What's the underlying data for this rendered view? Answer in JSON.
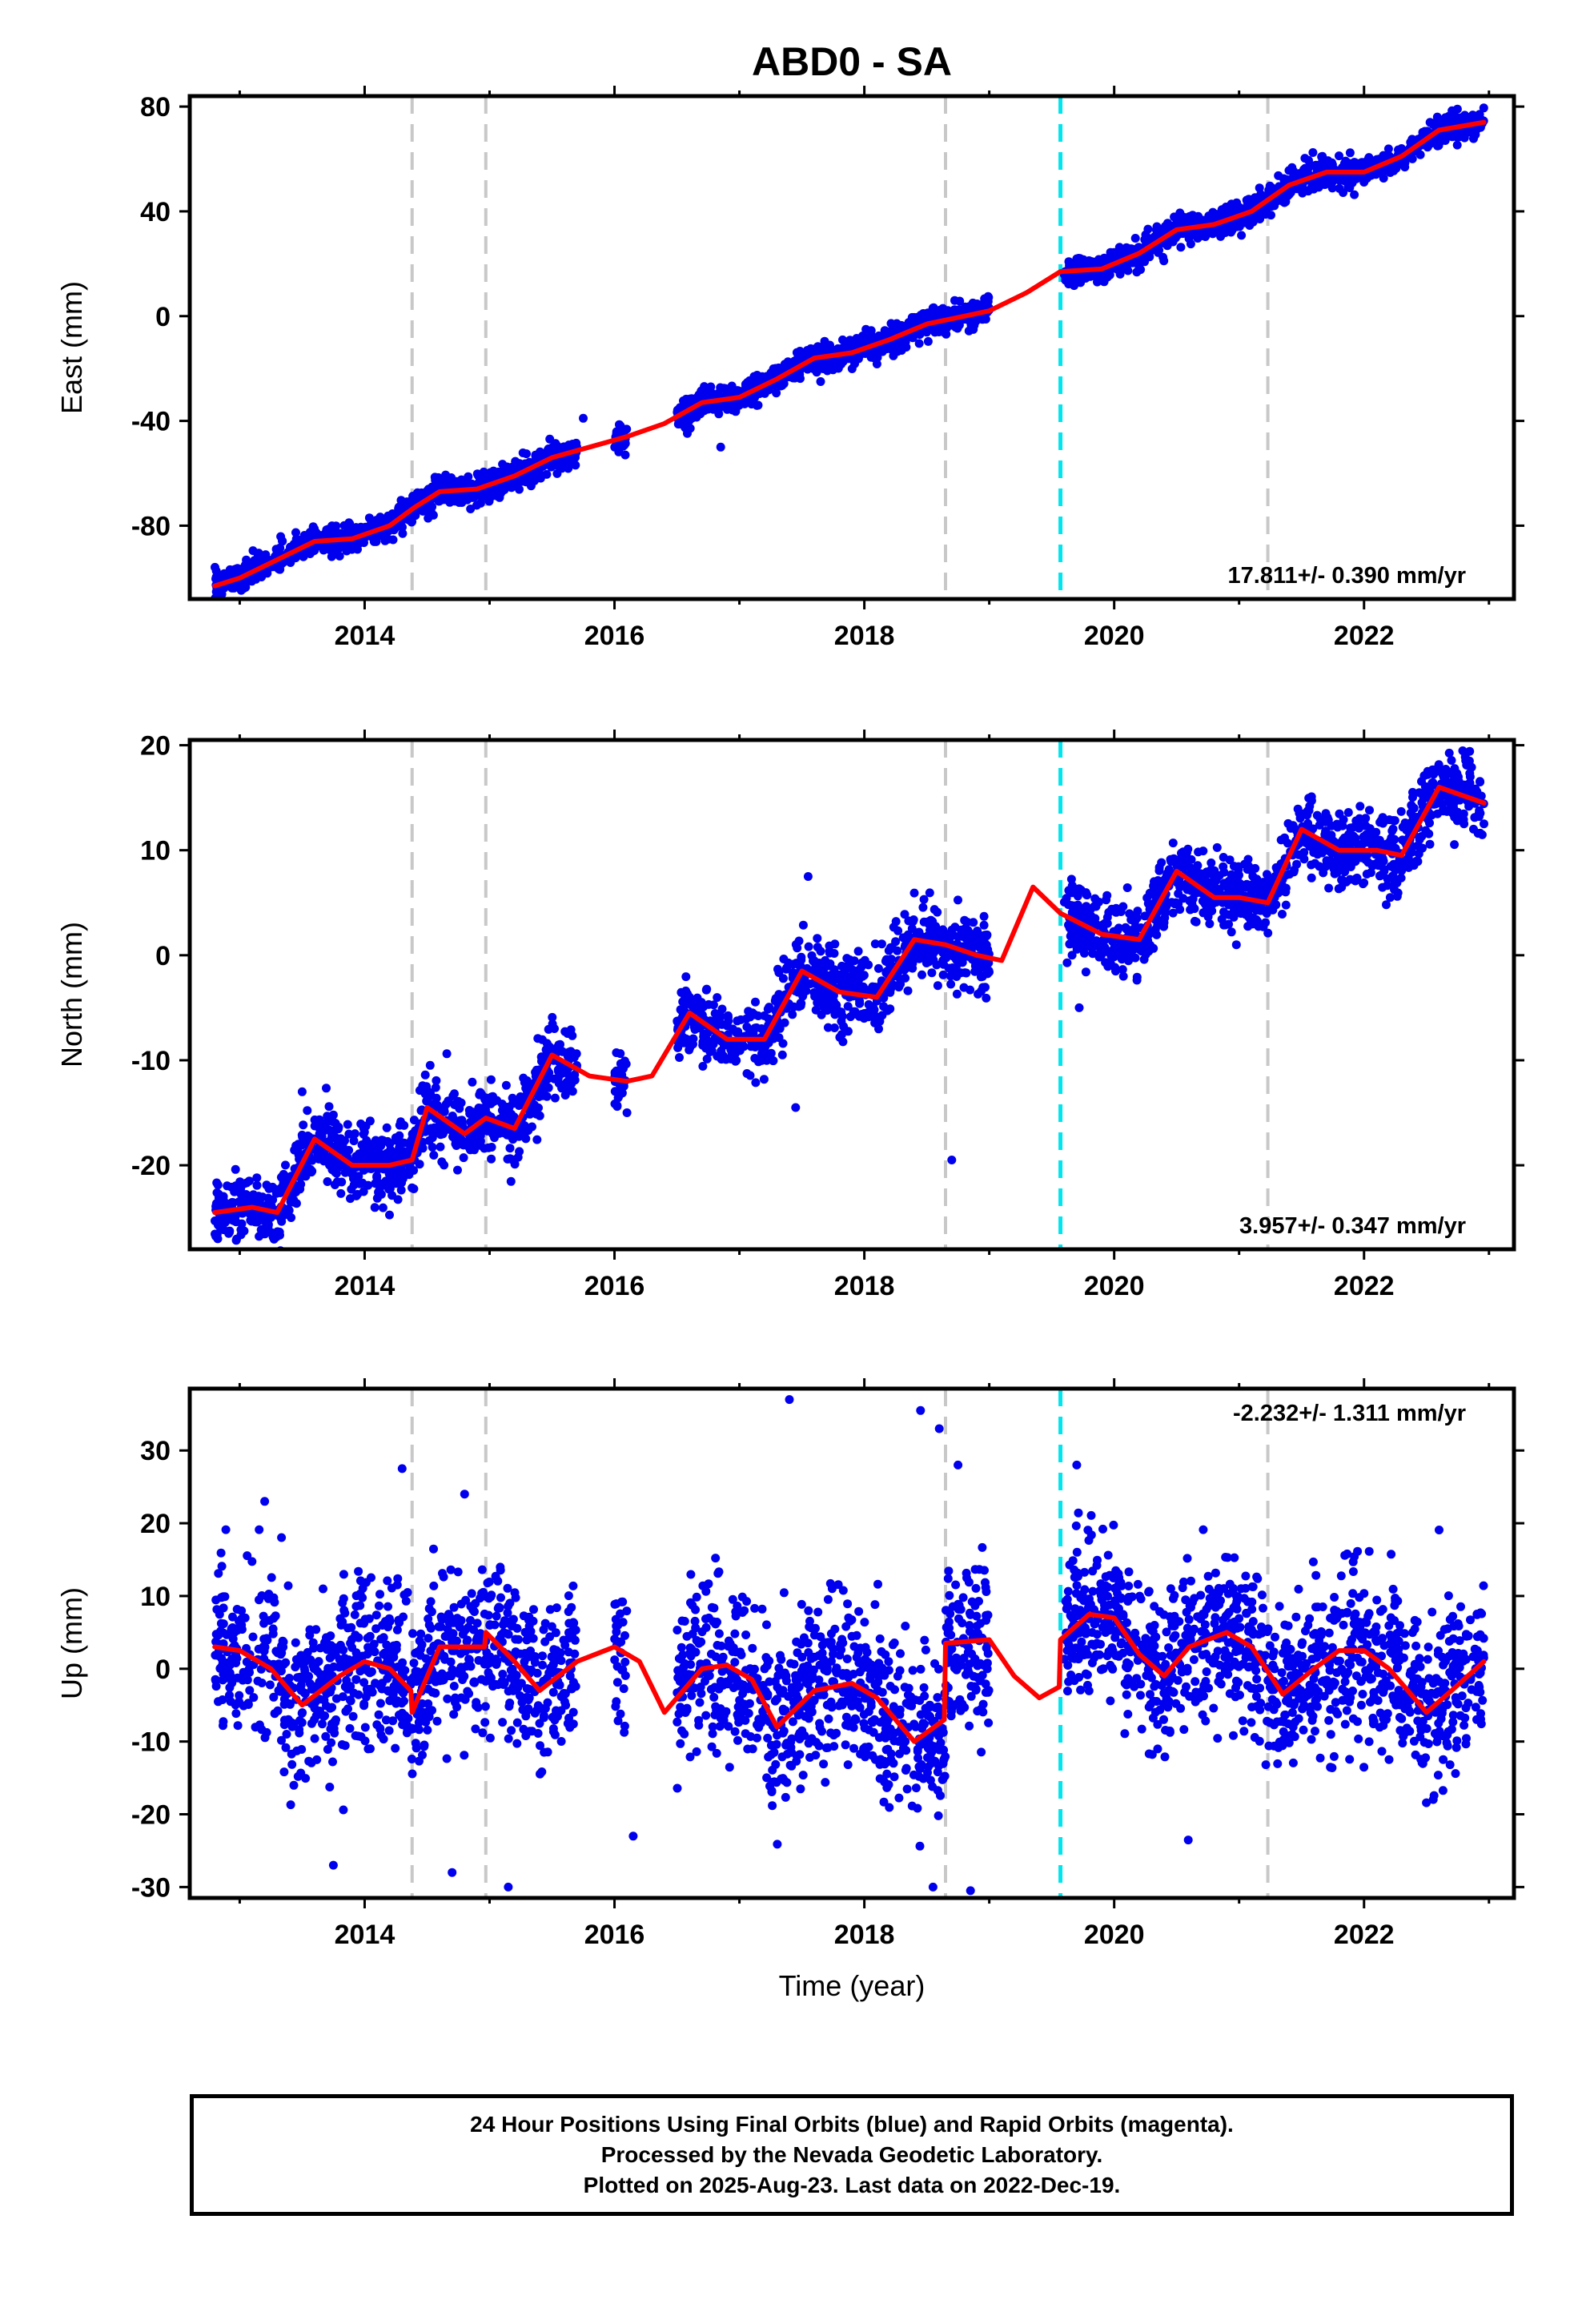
{
  "title": "ABD0 - SA",
  "colors": {
    "points": "#0000ee",
    "fit": "#ff0000",
    "step_line": "#c8c8c8",
    "antenna_line": "#00e5ee"
  },
  "chart_data": [
    {
      "type": "scatter",
      "panel": "east",
      "ylabel": "East (mm)",
      "xlabel": "",
      "xlim": [
        2012.6,
        2023.2
      ],
      "ylim": [
        -108,
        84
      ],
      "x_ticks": [
        "2014",
        "2016",
        "2018",
        "2020",
        "2022"
      ],
      "y_ticks": [
        "80",
        "40",
        "0",
        "-40",
        "-80"
      ],
      "rate_label": "17.811+/- 0.390 mm/yr",
      "step_lines": [
        2014.38,
        2014.97,
        2018.65,
        2021.23
      ],
      "antenna_change": [
        2019.57
      ],
      "data_segments": [
        [
          2012.8,
          2015.7
        ],
        [
          2016.0,
          2016.1
        ],
        [
          2016.5,
          2019.0
        ],
        [
          2019.6,
          2022.96
        ]
      ],
      "series": [
        {
          "name": "fit",
          "x": [
            2012.8,
            2013.0,
            2013.3,
            2013.6,
            2013.9,
            2014.2,
            2014.4,
            2014.6,
            2014.9,
            2015.2,
            2015.5,
            2015.8,
            2016.1,
            2016.4,
            2016.7,
            2017.0,
            2017.3,
            2017.6,
            2017.9,
            2018.2,
            2018.5,
            2018.8,
            2019.0,
            2019.3,
            2019.57,
            2019.9,
            2020.2,
            2020.5,
            2020.8,
            2021.1,
            2021.4,
            2021.7,
            2022.0,
            2022.3,
            2022.6,
            2022.96
          ],
          "y": [
            -103,
            -100,
            -93,
            -86,
            -85,
            -80,
            -73,
            -67,
            -66,
            -61,
            -54,
            -50,
            -46,
            -41,
            -33,
            -31,
            -24,
            -16,
            -14,
            -9,
            -3,
            0,
            2,
            9,
            17,
            18,
            24,
            33,
            35,
            40,
            50,
            55,
            55,
            61,
            71,
            74
          ]
        },
        {
          "name": "daily positions",
          "noise": 2.6,
          "outliers": [
            [
              2015.75,
              -39
            ],
            [
              2016.85,
              -50
            ],
            [
              2017.15,
              -34
            ],
            [
              2017.65,
              -25
            ],
            [
              2018.9,
              4
            ]
          ]
        }
      ]
    },
    {
      "type": "scatter",
      "panel": "north",
      "ylabel": "North (mm)",
      "xlabel": "",
      "xlim": [
        2012.6,
        2023.2
      ],
      "ylim": [
        -28,
        20.5
      ],
      "x_ticks": [
        "2014",
        "2016",
        "2018",
        "2020",
        "2022"
      ],
      "y_ticks": [
        "20",
        "10",
        "0",
        "-10",
        "-20"
      ],
      "rate_label": "3.957+/- 0.347 mm/yr",
      "step_lines": [
        2014.38,
        2014.97,
        2018.65,
        2021.23
      ],
      "antenna_change": [
        2019.57
      ],
      "data_segments": [
        [
          2012.8,
          2015.7
        ],
        [
          2016.0,
          2016.1
        ],
        [
          2016.5,
          2019.0
        ],
        [
          2019.6,
          2022.96
        ]
      ],
      "series": [
        {
          "name": "fit",
          "x": [
            2012.8,
            2013.1,
            2013.3,
            2013.6,
            2013.9,
            2014.2,
            2014.38,
            2014.5,
            2014.8,
            2014.97,
            2015.2,
            2015.5,
            2015.8,
            2016.1,
            2016.3,
            2016.6,
            2016.9,
            2017.2,
            2017.5,
            2017.8,
            2018.1,
            2018.4,
            2018.65,
            2018.9,
            2019.1,
            2019.35,
            2019.57,
            2019.9,
            2020.2,
            2020.5,
            2020.8,
            2021.0,
            2021.23,
            2021.5,
            2021.8,
            2022.1,
            2022.3,
            2022.6,
            2022.96
          ],
          "y": [
            -24.5,
            -24.0,
            -24.5,
            -17.5,
            -20.0,
            -20.0,
            -19.5,
            -14.5,
            -17.0,
            -15.5,
            -16.5,
            -9.5,
            -11.5,
            -12.0,
            -11.5,
            -5.5,
            -8.0,
            -8.0,
            -1.5,
            -3.5,
            -4.0,
            1.5,
            1.0,
            0.0,
            -0.5,
            6.5,
            4.0,
            2.0,
            1.5,
            8.0,
            5.5,
            5.5,
            5.0,
            12.0,
            10.0,
            10.0,
            9.5,
            16.0,
            14.5
          ]
        },
        {
          "name": "daily positions",
          "noise": 1.7,
          "outliers": [
            [
              2013.5,
              -13
            ],
            [
              2017.45,
              -14.5
            ],
            [
              2017.55,
              7.5
            ],
            [
              2018.7,
              -19.5
            ],
            [
              2019.72,
              -5
            ],
            [
              2016.1,
              -15
            ],
            [
              2022.4,
              14
            ]
          ]
        }
      ]
    },
    {
      "type": "scatter",
      "panel": "up",
      "ylabel": "Up (mm)",
      "xlabel": "Time (year)",
      "xlim": [
        2012.6,
        2023.2
      ],
      "ylim": [
        -31.5,
        38.5
      ],
      "x_ticks": [
        "2014",
        "2016",
        "2018",
        "2020",
        "2022"
      ],
      "y_ticks": [
        "30",
        "20",
        "10",
        "0",
        "-10",
        "-20",
        "-30"
      ],
      "rate_label": "-2.232+/- 1.311 mm/yr",
      "step_lines": [
        2014.38,
        2014.97,
        2018.65,
        2021.23
      ],
      "antenna_change": [
        2019.57
      ],
      "data_segments": [
        [
          2012.8,
          2015.7
        ],
        [
          2016.0,
          2016.1
        ],
        [
          2016.5,
          2019.0
        ],
        [
          2019.6,
          2022.96
        ]
      ],
      "series": [
        {
          "name": "fit",
          "x": [
            2012.8,
            2013.0,
            2013.25,
            2013.5,
            2013.8,
            2014.0,
            2014.2,
            2014.37,
            2014.38,
            2014.6,
            2014.96,
            2014.97,
            2015.2,
            2015.4,
            2015.7,
            2016.0,
            2016.2,
            2016.4,
            2016.7,
            2016.9,
            2017.1,
            2017.3,
            2017.6,
            2017.9,
            2018.1,
            2018.4,
            2018.64,
            2018.65,
            2019.0,
            2019.2,
            2019.4,
            2019.56,
            2019.57,
            2019.8,
            2020.0,
            2020.2,
            2020.4,
            2020.6,
            2020.9,
            2021.1,
            2021.35,
            2021.6,
            2021.8,
            2022.0,
            2022.2,
            2022.5,
            2022.7,
            2022.96
          ],
          "y": [
            3,
            2.5,
            0,
            -5,
            -1,
            1,
            0,
            -3,
            -6,
            3,
            3,
            5,
            1,
            -3,
            1,
            3,
            1,
            -6,
            0,
            0.5,
            -1.5,
            -8,
            -3,
            -2,
            -4,
            -10,
            -7,
            3.5,
            4,
            -1,
            -4,
            -2.5,
            4,
            7.5,
            7,
            2,
            -1,
            3,
            5,
            3,
            -3.5,
            0,
            2.5,
            2.5,
            0,
            -6,
            -3,
            1
          ]
        },
        {
          "name": "daily positions",
          "noise": 5.5,
          "outliers": [
            [
              2014.3,
              27.5
            ],
            [
              2014.8,
              24
            ],
            [
              2013.2,
              23
            ],
            [
              2017.4,
              37
            ],
            [
              2018.45,
              35.5
            ],
            [
              2018.75,
              28
            ],
            [
              2019.7,
              28
            ],
            [
              2014.7,
              -28
            ],
            [
              2015.15,
              -30
            ],
            [
              2013.75,
              -27
            ],
            [
              2018.55,
              -30
            ],
            [
              2018.6,
              33
            ],
            [
              2016.15,
              -23
            ],
            [
              2018.85,
              -30.5
            ]
          ]
        }
      ]
    }
  ],
  "footer": {
    "line1": "24 Hour Positions Using Final Orbits (blue) and Rapid Orbits (magenta).",
    "line2": "Processed by the Nevada Geodetic Laboratory.",
    "line3": "Plotted on 2025-Aug-23. Last data on 2022-Dec-19."
  }
}
